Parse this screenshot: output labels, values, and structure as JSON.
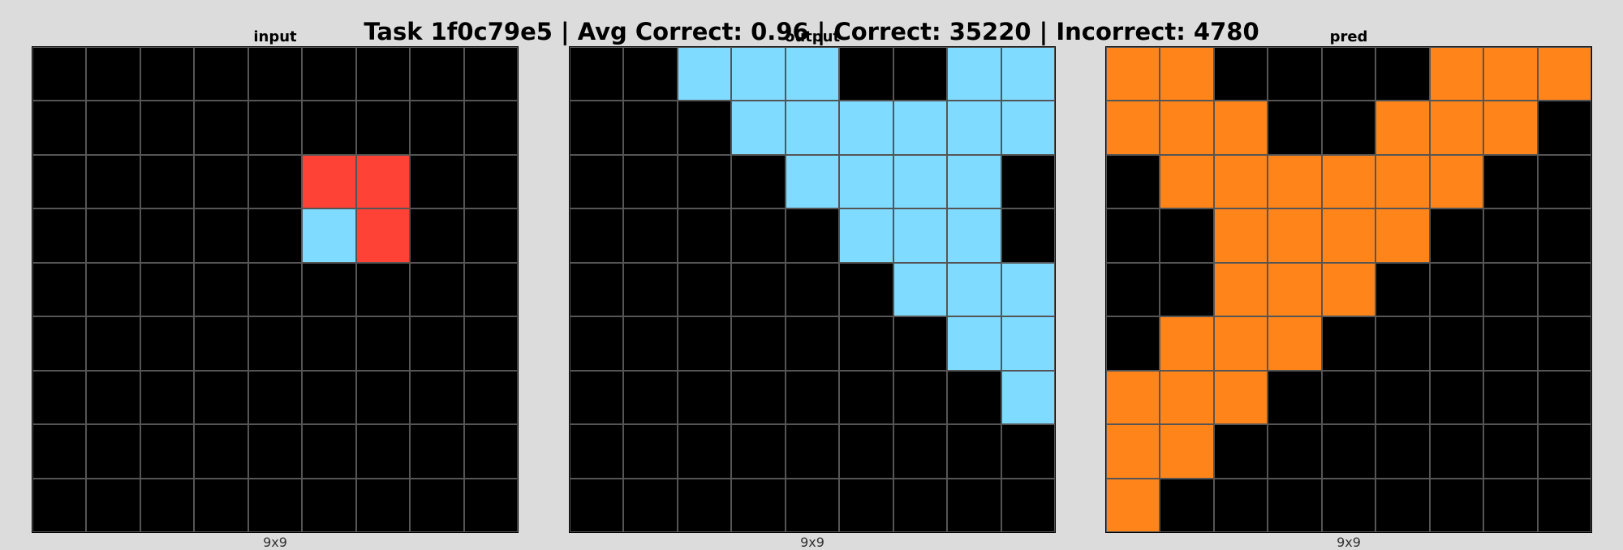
{
  "title": "Task 1f0c79e5 | Avg Correct: 0.96 | Correct: 35220 | Incorrect: 4780",
  "palette": {
    "0": "#000000",
    "1": "#1e93ff",
    "2": "#ff4136",
    "3": "#2ecc40",
    "4": "#ffdc00",
    "5": "#aaaaaa",
    "6": "#f012be",
    "7": "#ff851b",
    "8": "#7fdbff",
    "9": "#870c25"
  },
  "panels": [
    {
      "label": "input",
      "dims": "9x9",
      "grid": [
        [
          0,
          0,
          0,
          0,
          0,
          0,
          0,
          0,
          0
        ],
        [
          0,
          0,
          0,
          0,
          0,
          0,
          0,
          0,
          0
        ],
        [
          0,
          0,
          0,
          0,
          0,
          2,
          2,
          0,
          0
        ],
        [
          0,
          0,
          0,
          0,
          0,
          8,
          2,
          0,
          0
        ],
        [
          0,
          0,
          0,
          0,
          0,
          0,
          0,
          0,
          0
        ],
        [
          0,
          0,
          0,
          0,
          0,
          0,
          0,
          0,
          0
        ],
        [
          0,
          0,
          0,
          0,
          0,
          0,
          0,
          0,
          0
        ],
        [
          0,
          0,
          0,
          0,
          0,
          0,
          0,
          0,
          0
        ],
        [
          0,
          0,
          0,
          0,
          0,
          0,
          0,
          0,
          0
        ]
      ]
    },
    {
      "label": "output",
      "dims": "9x9",
      "grid": [
        [
          0,
          0,
          8,
          8,
          8,
          0,
          0,
          8,
          8
        ],
        [
          0,
          0,
          0,
          8,
          8,
          8,
          8,
          8,
          8
        ],
        [
          0,
          0,
          0,
          0,
          8,
          8,
          8,
          8,
          0
        ],
        [
          0,
          0,
          0,
          0,
          0,
          8,
          8,
          8,
          0
        ],
        [
          0,
          0,
          0,
          0,
          0,
          0,
          8,
          8,
          8
        ],
        [
          0,
          0,
          0,
          0,
          0,
          0,
          0,
          8,
          8
        ],
        [
          0,
          0,
          0,
          0,
          0,
          0,
          0,
          0,
          8
        ],
        [
          0,
          0,
          0,
          0,
          0,
          0,
          0,
          0,
          0
        ],
        [
          0,
          0,
          0,
          0,
          0,
          0,
          0,
          0,
          0
        ]
      ]
    },
    {
      "label": "pred",
      "dims": "9x9",
      "grid": [
        [
          7,
          7,
          0,
          0,
          0,
          0,
          7,
          7,
          7
        ],
        [
          7,
          7,
          7,
          0,
          0,
          7,
          7,
          7,
          0
        ],
        [
          0,
          7,
          7,
          7,
          7,
          7,
          7,
          0,
          0
        ],
        [
          0,
          0,
          7,
          7,
          7,
          7,
          0,
          0,
          0
        ],
        [
          0,
          0,
          7,
          7,
          7,
          0,
          0,
          0,
          0
        ],
        [
          0,
          7,
          7,
          7,
          0,
          0,
          0,
          0,
          0
        ],
        [
          7,
          7,
          7,
          0,
          0,
          0,
          0,
          0,
          0
        ],
        [
          7,
          7,
          0,
          0,
          0,
          0,
          0,
          0,
          0
        ],
        [
          7,
          0,
          0,
          0,
          0,
          0,
          0,
          0,
          0
        ]
      ]
    }
  ]
}
